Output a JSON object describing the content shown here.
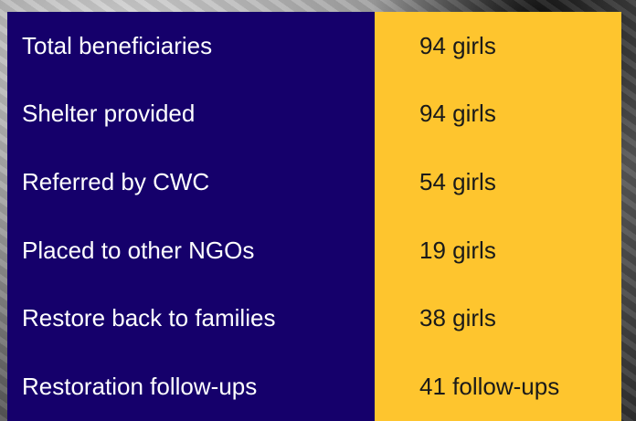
{
  "table": {
    "rows": [
      [
        "Total beneficiaries",
        "94 girls"
      ],
      [
        "Shelter provided",
        "94 girls"
      ],
      [
        "Referred by CWC",
        "54 girls"
      ],
      [
        "Placed to other NGOs",
        "19 girls"
      ],
      [
        "Restore back to families",
        "38 girls"
      ],
      [
        "Restoration follow-ups",
        "41 follow-ups"
      ]
    ]
  }
}
